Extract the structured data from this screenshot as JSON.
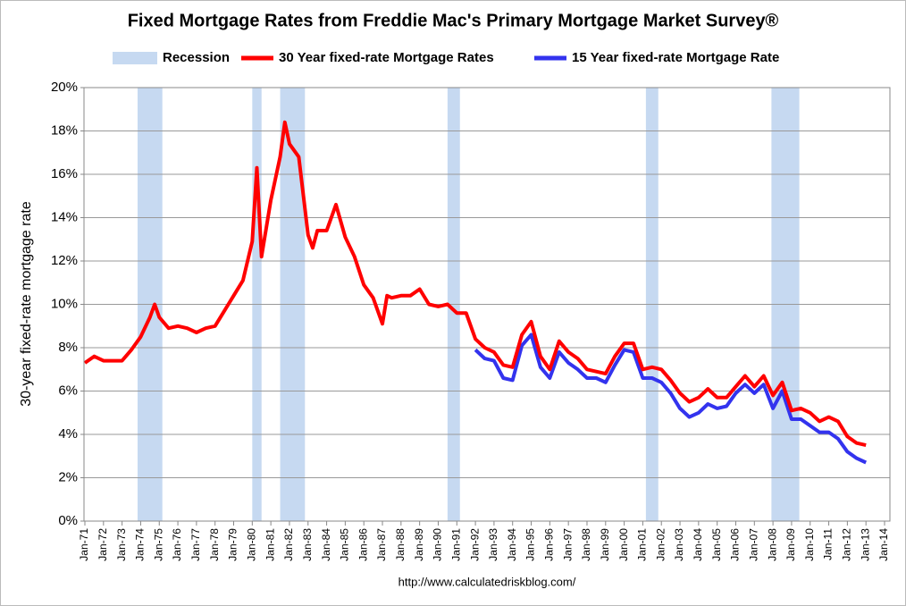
{
  "chart_data": {
    "type": "line",
    "title": "Fixed Mortgage Rates from Freddie Mac's Primary Mortgage Market Survey®",
    "y_label": "30-year fixed-rate mortgage rate",
    "source": "http://www.calculatedriskblog.com/",
    "recession_label": "Recession",
    "recession_color": "#c6d9f1",
    "recessions": [
      [
        "Nov-73",
        "Mar-75"
      ],
      [
        "Jan-80",
        "Jul-80"
      ],
      [
        "Jul-81",
        "Nov-82"
      ],
      [
        "Jul-90",
        "Mar-91"
      ],
      [
        "Mar-01",
        "Nov-01"
      ],
      [
        "Dec-07",
        "Jun-09"
      ]
    ],
    "grid": true,
    "ylim": [
      0,
      20
    ],
    "yticks": [
      {
        "value": 0,
        "label": "0%"
      },
      {
        "value": 2,
        "label": "2%"
      },
      {
        "value": 4,
        "label": "4%"
      },
      {
        "value": 6,
        "label": "6%"
      },
      {
        "value": 8,
        "label": "8%"
      },
      {
        "value": 10,
        "label": "10%"
      },
      {
        "value": 12,
        "label": "12%"
      },
      {
        "value": 14,
        "label": "14%"
      },
      {
        "value": 16,
        "label": "16%"
      },
      {
        "value": 18,
        "label": "18%"
      },
      {
        "value": 20,
        "label": "20%"
      }
    ],
    "xlim": [
      "Jan-71",
      "Jan-14"
    ],
    "xticks": [
      "Jan-71",
      "Jan-72",
      "Jan-73",
      "Jan-74",
      "Jan-75",
      "Jan-76",
      "Jan-77",
      "Jan-78",
      "Jan-79",
      "Jan-80",
      "Jan-81",
      "Jan-82",
      "Jan-83",
      "Jan-84",
      "Jan-85",
      "Jan-86",
      "Jan-87",
      "Jan-88",
      "Jan-89",
      "Jan-90",
      "Jan-91",
      "Jan-92",
      "Jan-93",
      "Jan-94",
      "Jan-95",
      "Jan-96",
      "Jan-97",
      "Jan-98",
      "Jan-99",
      "Jan-00",
      "Jan-01",
      "Jan-02",
      "Jan-03",
      "Jan-04",
      "Jan-05",
      "Jan-06",
      "Jan-07",
      "Jan-08",
      "Jan-09",
      "Jan-10",
      "Jan-11",
      "Jan-12",
      "Jan-13",
      "Jan-14"
    ],
    "x": [
      "Jan-71",
      "Jul-71",
      "Jan-72",
      "Jul-72",
      "Jan-73",
      "Jul-73",
      "Jan-74",
      "Jul-74",
      "Oct-74",
      "Jan-75",
      "Jul-75",
      "Jan-76",
      "Jul-76",
      "Jan-77",
      "Jul-77",
      "Jan-78",
      "Jul-78",
      "Jan-79",
      "Jul-79",
      "Jan-80",
      "Apr-80",
      "Jul-80",
      "Jan-81",
      "Jul-81",
      "Oct-81",
      "Jan-82",
      "Jul-82",
      "Jan-83",
      "Apr-83",
      "Jul-83",
      "Jan-84",
      "Jul-84",
      "Jan-85",
      "Jul-85",
      "Jan-86",
      "Jul-86",
      "Jan-87",
      "Apr-87",
      "Jul-87",
      "Jan-88",
      "Jul-88",
      "Jan-89",
      "Jul-89",
      "Jan-90",
      "Jul-90",
      "Jan-91",
      "Jul-91",
      "Jan-92",
      "Jul-92",
      "Jan-93",
      "Jul-93",
      "Jan-94",
      "Jul-94",
      "Jan-95",
      "Jul-95",
      "Jan-96",
      "Jul-96",
      "Jan-97",
      "Jul-97",
      "Jan-98",
      "Jul-98",
      "Jan-99",
      "Jul-99",
      "Jan-00",
      "Jul-00",
      "Jan-01",
      "Jul-01",
      "Jan-02",
      "Jul-02",
      "Jan-03",
      "Jul-03",
      "Jan-04",
      "Jul-04",
      "Jan-05",
      "Jul-05",
      "Jan-06",
      "Jul-06",
      "Jan-07",
      "Jul-07",
      "Jan-08",
      "Jul-08",
      "Jan-09",
      "Jul-09",
      "Jan-10",
      "Jul-10",
      "Jan-11",
      "Jul-11",
      "Jan-12",
      "Jul-12",
      "Jan-13"
    ],
    "series": [
      {
        "name": "30 Year fixed-rate Mortgage Rates",
        "color": "#ff0000",
        "values": [
          7.3,
          7.6,
          7.4,
          7.4,
          7.4,
          7.9,
          8.5,
          9.4,
          10.0,
          9.4,
          8.9,
          9.0,
          8.9,
          8.7,
          8.9,
          9.0,
          9.7,
          10.4,
          11.1,
          12.9,
          16.3,
          12.2,
          14.8,
          16.8,
          18.4,
          17.4,
          16.8,
          13.2,
          12.6,
          13.4,
          13.4,
          14.6,
          13.1,
          12.2,
          10.9,
          10.3,
          9.1,
          10.4,
          10.3,
          10.4,
          10.4,
          10.7,
          10.0,
          9.9,
          10.0,
          9.6,
          9.6,
          8.4,
          8.0,
          7.8,
          7.2,
          7.1,
          8.6,
          9.2,
          7.6,
          7.0,
          8.3,
          7.8,
          7.5,
          7.0,
          6.9,
          6.8,
          7.6,
          8.2,
          8.2,
          7.0,
          7.1,
          7.0,
          6.5,
          5.9,
          5.5,
          5.7,
          6.1,
          5.7,
          5.7,
          6.2,
          6.7,
          6.2,
          6.7,
          5.8,
          6.4,
          5.1,
          5.2,
          5.0,
          4.6,
          4.8,
          4.6,
          3.9,
          3.6,
          3.5
        ]
      },
      {
        "name": "15 Year fixed-rate Mortgage Rate",
        "color": "#3333ee",
        "values": [
          null,
          null,
          null,
          null,
          null,
          null,
          null,
          null,
          null,
          null,
          null,
          null,
          null,
          null,
          null,
          null,
          null,
          null,
          null,
          null,
          null,
          null,
          null,
          null,
          null,
          null,
          null,
          null,
          null,
          null,
          null,
          null,
          null,
          null,
          null,
          null,
          null,
          null,
          null,
          null,
          null,
          null,
          null,
          null,
          null,
          null,
          null,
          7.9,
          7.5,
          7.4,
          6.6,
          6.5,
          8.1,
          8.6,
          7.1,
          6.6,
          7.8,
          7.3,
          7.0,
          6.6,
          6.6,
          6.4,
          7.2,
          7.9,
          7.8,
          6.6,
          6.6,
          6.4,
          5.9,
          5.2,
          4.8,
          5.0,
          5.4,
          5.2,
          5.3,
          5.9,
          6.3,
          5.9,
          6.3,
          5.2,
          6.0,
          4.7,
          4.7,
          4.4,
          4.1,
          4.1,
          3.8,
          3.2,
          2.9,
          2.7
        ]
      }
    ]
  }
}
